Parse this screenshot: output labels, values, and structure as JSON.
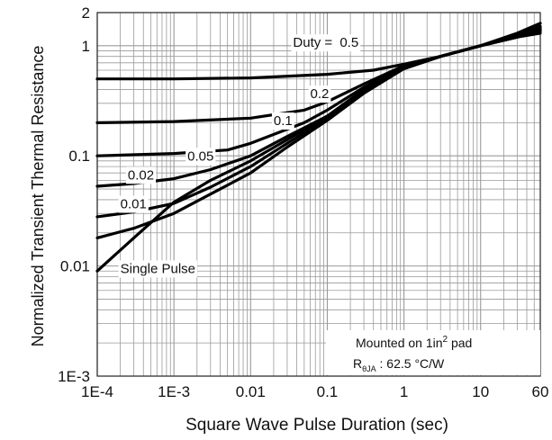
{
  "chart_data": {
    "type": "line",
    "title": "",
    "xlabel": "Square Wave Pulse Duration (sec)",
    "ylabel": "Normalized Transient Thermal Resistance",
    "xscale": "log",
    "yscale": "log",
    "xlim": [
      0.0001,
      60
    ],
    "ylim": [
      0.001,
      2
    ],
    "x_ticks": [
      {
        "value": 0.0001,
        "label": "1E-4"
      },
      {
        "value": 0.001,
        "label": "1E-3"
      },
      {
        "value": 0.01,
        "label": "0.01"
      },
      {
        "value": 0.1,
        "label": "0.1"
      },
      {
        "value": 1,
        "label": "1"
      },
      {
        "value": 10,
        "label": "10"
      },
      {
        "value": 60,
        "label": "60"
      }
    ],
    "y_ticks": [
      {
        "value": 0.001,
        "label": "1E-3"
      },
      {
        "value": 0.01,
        "label": "0.01"
      },
      {
        "value": 0.1,
        "label": "0.1"
      },
      {
        "value": 1,
        "label": "1"
      },
      {
        "value": 2,
        "label": "2"
      }
    ],
    "grid": true,
    "series": [
      {
        "name": "0.5",
        "x": [
          0.0001,
          0.001,
          0.01,
          0.1,
          0.4,
          1,
          3,
          10,
          30,
          60
        ],
        "y": [
          0.5,
          0.5,
          0.51,
          0.55,
          0.6,
          0.68,
          0.8,
          1.0,
          1.2,
          1.4
        ]
      },
      {
        "name": "0.2",
        "x": [
          0.0001,
          0.001,
          0.01,
          0.05,
          0.1,
          0.3,
          1,
          3,
          10,
          30,
          60
        ],
        "y": [
          0.2,
          0.205,
          0.22,
          0.26,
          0.31,
          0.45,
          0.66,
          0.8,
          1.0,
          1.2,
          1.3
        ]
      },
      {
        "name": "0.1",
        "x": [
          0.0001,
          0.001,
          0.005,
          0.01,
          0.05,
          0.1,
          0.3,
          1,
          3,
          10,
          30,
          60
        ],
        "y": [
          0.1,
          0.105,
          0.113,
          0.13,
          0.2,
          0.26,
          0.42,
          0.65,
          0.8,
          1.0,
          1.2,
          1.35
        ]
      },
      {
        "name": "0.05",
        "x": [
          0.0001,
          0.0003,
          0.001,
          0.003,
          0.01,
          0.03,
          0.1,
          0.3,
          1,
          3,
          10,
          30,
          60
        ],
        "y": [
          0.053,
          0.056,
          0.062,
          0.075,
          0.1,
          0.15,
          0.23,
          0.4,
          0.64,
          0.8,
          1.0,
          1.2,
          1.4
        ]
      },
      {
        "name": "0.02",
        "x": [
          0.0001,
          0.0003,
          0.001,
          0.003,
          0.01,
          0.03,
          0.1,
          0.3,
          1,
          3,
          10,
          30,
          60
        ],
        "y": [
          0.028,
          0.031,
          0.037,
          0.052,
          0.08,
          0.13,
          0.22,
          0.38,
          0.63,
          0.8,
          1.0,
          1.2,
          1.45
        ]
      },
      {
        "name": "0.01",
        "x": [
          0.0001,
          0.0003,
          0.001,
          0.003,
          0.01,
          0.03,
          0.1,
          0.3,
          1,
          3,
          10,
          30,
          60
        ],
        "y": [
          0.018,
          0.022,
          0.03,
          0.045,
          0.07,
          0.12,
          0.21,
          0.37,
          0.62,
          0.8,
          1.0,
          1.25,
          1.5
        ]
      },
      {
        "name": "Single Pulse",
        "x": [
          0.0001,
          0.0003,
          0.001,
          0.003,
          0.01,
          0.03,
          0.1,
          0.3,
          1,
          3,
          10,
          30,
          60
        ],
        "y": [
          0.009,
          0.018,
          0.038,
          0.06,
          0.09,
          0.14,
          0.23,
          0.38,
          0.62,
          0.8,
          1.0,
          1.3,
          1.6
        ]
      }
    ],
    "series_labels": [
      {
        "series": "0.5",
        "text": "0.5",
        "at_x": 0.7,
        "at_y": 1.05
      },
      {
        "series": "0.2",
        "text": "0.2",
        "at_x": 0.06,
        "at_y": 0.36
      },
      {
        "series": "0.1",
        "text": "0.1",
        "at_x": 0.02,
        "at_y": 0.205
      },
      {
        "series": "0.05",
        "text": "0.05",
        "at_x": 0.0015,
        "at_y": 0.098
      },
      {
        "series": "0.02",
        "text": "0.02",
        "at_x": 0.00025,
        "at_y": 0.066
      },
      {
        "series": "0.01",
        "text": "0.01",
        "at_x": 0.0002,
        "at_y": 0.036
      },
      {
        "series": "Single Pulse",
        "text": "Single Pulse",
        "at_x": 0.0002,
        "at_y": 0.0093
      }
    ],
    "duty_prefix": "Duty = ",
    "annotation": {
      "line1_pre": "Mounted on 1in",
      "line1_sup": "2",
      "line1_post": " pad",
      "line2_main": "R",
      "line2_sub": "θJA",
      "line2_rest": " : 62.5 °C/W"
    },
    "colors": {
      "line": "#000000",
      "grid": "#9a9a9a",
      "background": "#ffffff"
    }
  }
}
